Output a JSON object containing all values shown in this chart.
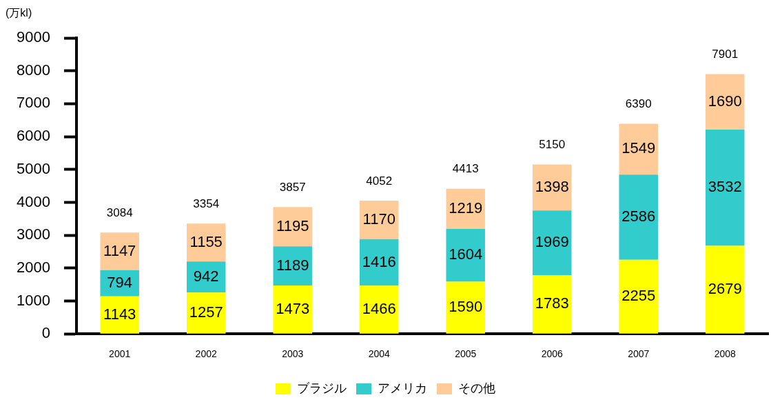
{
  "chart_data": {
    "type": "bar",
    "stacked": true,
    "ylabel": "(万kl)",
    "categories": [
      "2001",
      "2002",
      "2003",
      "2004",
      "2005",
      "2006",
      "2007",
      "2008"
    ],
    "series": [
      {
        "name": "ブラジル",
        "color": "#ffff00",
        "values": [
          1143,
          1257,
          1473,
          1466,
          1590,
          1783,
          2255,
          2679
        ]
      },
      {
        "name": "アメリカ",
        "color": "#33cccc",
        "values": [
          794,
          942,
          1189,
          1416,
          1604,
          1969,
          2586,
          3532
        ]
      },
      {
        "name": "その他",
        "color": "#ffcc99",
        "values": [
          1147,
          1155,
          1195,
          1170,
          1219,
          1398,
          1549,
          1690
        ]
      }
    ],
    "totals": [
      "3084",
      "3354",
      "3857",
      "4052",
      "4413",
      "5150",
      "6390",
      "7901"
    ],
    "data_labels": true,
    "ylim": [
      0,
      9000
    ],
    "yticks": [
      0,
      1000,
      2000,
      3000,
      4000,
      5000,
      6000,
      7000,
      8000,
      9000
    ],
    "grid": false,
    "legend": "bottom"
  }
}
